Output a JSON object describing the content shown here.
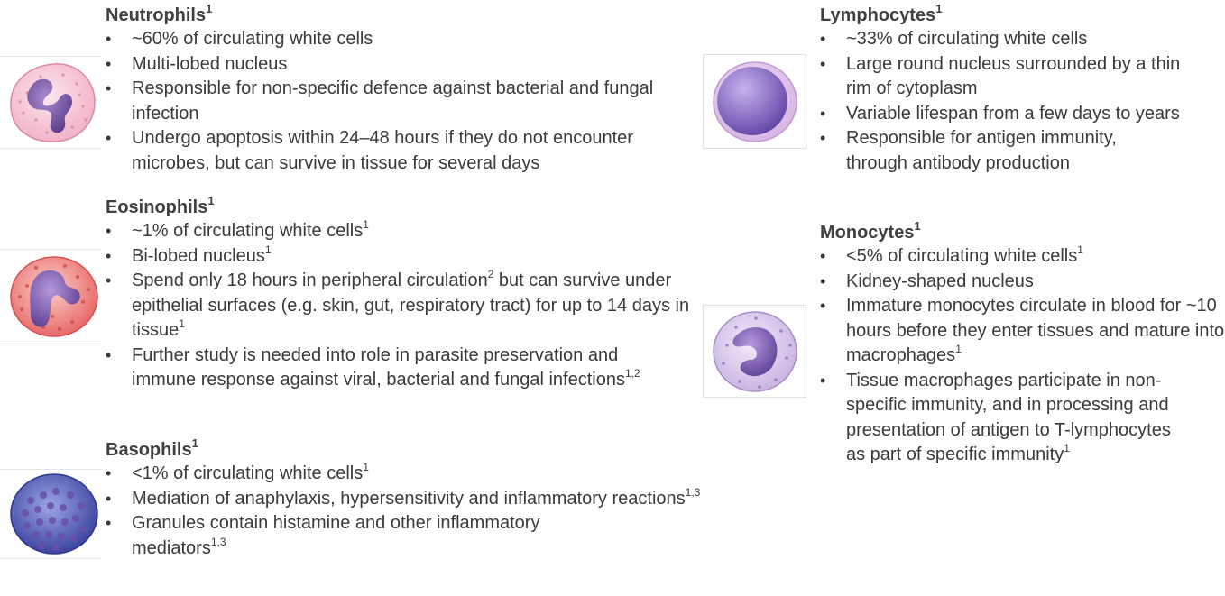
{
  "neutrophils": {
    "title": "Neutrophils",
    "title_ref": "1",
    "items": [
      {
        "text": "~60% of circulating white cells",
        "ref": ""
      },
      {
        "text": "Multi-lobed nucleus",
        "ref": ""
      },
      {
        "text": "Responsible for non-specific defence against bacterial and fungal infection",
        "ref": ""
      },
      {
        "text": "Undergo apoptosis within 24–48 hours if they do not encounter microbes, but can survive in tissue for several days",
        "ref": ""
      }
    ]
  },
  "eosinophils": {
    "title": "Eosinophils",
    "title_ref": "1",
    "items": [
      {
        "text": "~1% of circulating white cells",
        "ref": "1"
      },
      {
        "text": "Bi-lobed nucleus",
        "ref": "1"
      },
      {
        "text_a": "Spend only 18 hours in peripheral circulation",
        "ref_a": "2",
        "text_b": " but can survive under epithelial surfaces (e.g. skin, gut, respiratory tract) for up to 14 days in tissue",
        "ref": "1"
      },
      {
        "text": "Further study is needed into role in parasite preservation and immune response against viral, bacterial and fungal infections",
        "ref": "1,2"
      }
    ]
  },
  "basophils": {
    "title": "Basophils",
    "title_ref": "1",
    "items": [
      {
        "text": "<1% of circulating white cells",
        "ref": "1"
      },
      {
        "text": "Mediation of anaphylaxis, hypersensitivity and inflammatory reactions",
        "ref": "1,3"
      },
      {
        "text": "Granules contain histamine and other inflammatory mediators",
        "ref": "1,3"
      }
    ]
  },
  "lymphocytes": {
    "title": "Lymphocytes",
    "title_ref": "1",
    "items": [
      {
        "text": "~33% of circulating white cells",
        "ref": ""
      },
      {
        "text": "Large round nucleus surrounded by a thin rim of cytoplasm",
        "ref": ""
      },
      {
        "text": "Variable lifespan from a few days to years",
        "ref": ""
      },
      {
        "text": "Responsible for antigen immunity, through antibody production",
        "ref": ""
      }
    ]
  },
  "monocytes": {
    "title": "Monocytes",
    "title_ref": "1",
    "items": [
      {
        "text": "<5% of circulating white cells",
        "ref": "1"
      },
      {
        "text": "Kidney-shaped nucleus",
        "ref": ""
      },
      {
        "text": "Immature monocytes circulate in blood for ~10 hours before they enter tissues and mature into macrophages",
        "ref": "1"
      },
      {
        "text": "Tissue macrophages participate in non-specific immunity, and in processing and presentation of antigen to T-lymphocytes as part of specific immunity",
        "ref": "1"
      }
    ]
  },
  "colors": {
    "text": "#3a3a3a",
    "neutrophil_cytoplasm": "#f6c6d6",
    "eosinophil_cytoplasm": "#ef8a8a",
    "basophil_cytoplasm": "#5a64b4",
    "lymphocyte_nucleus": "#8a70c8",
    "monocyte_cytoplasm": "#ddd0ee",
    "nucleus": "#7a5aa8"
  }
}
